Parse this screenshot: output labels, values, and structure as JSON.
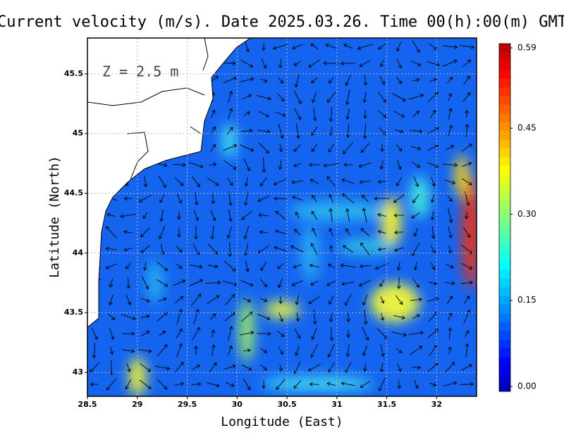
{
  "chart_data": {
    "type": "vector-map",
    "title": "Current velocity (m/s). Date 2025.03.26. Time 00(h):00(m) GMT",
    "annotation": "Z = 2.5 m",
    "x_label": "Longitude (East)",
    "y_label": "Latitude (North)",
    "xlim": [
      28.5,
      32.4
    ],
    "ylim": [
      42.8,
      45.8
    ],
    "xticks": [
      28.5,
      29,
      29.5,
      30,
      30.5,
      31,
      31.5,
      32
    ],
    "yticks": [
      45.5,
      45,
      44.5,
      44,
      43.5,
      43
    ],
    "grid": true,
    "clim": [
      0,
      0.59
    ],
    "colorbar_ticks": [
      0.59,
      0.45,
      {
        "value": 0.3,
        "label": "0.30"
      },
      0.15,
      {
        "value": 0,
        "label": "0.00"
      }
    ]
  }
}
